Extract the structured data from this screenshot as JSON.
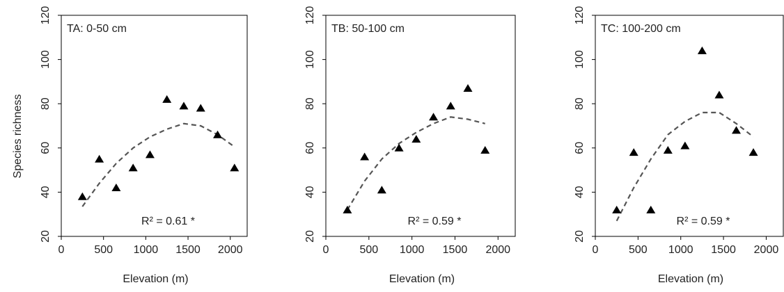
{
  "chart_data": [
    {
      "type": "scatter",
      "title": "TA: 0-50 cm",
      "xlabel": "Elevation (m)",
      "ylabel": "Species richness",
      "xlim": [
        0,
        2200
      ],
      "ylim": [
        20,
        120
      ],
      "xticks": [
        "0",
        "500",
        "1000",
        "1500",
        "2000"
      ],
      "yticks": [
        "20",
        "40",
        "60",
        "80",
        "100",
        "120"
      ],
      "points": [
        {
          "x": 250,
          "y": 38
        },
        {
          "x": 450,
          "y": 55
        },
        {
          "x": 650,
          "y": 42
        },
        {
          "x": 850,
          "y": 51
        },
        {
          "x": 1050,
          "y": 57
        },
        {
          "x": 1250,
          "y": 82
        },
        {
          "x": 1450,
          "y": 79
        },
        {
          "x": 1650,
          "y": 78
        },
        {
          "x": 1850,
          "y": 66
        },
        {
          "x": 2050,
          "y": 51
        }
      ],
      "trend": [
        {
          "x": 250,
          "y": 33.5
        },
        {
          "x": 450,
          "y": 44
        },
        {
          "x": 650,
          "y": 53
        },
        {
          "x": 850,
          "y": 60
        },
        {
          "x": 1050,
          "y": 65
        },
        {
          "x": 1250,
          "y": 68.5
        },
        {
          "x": 1450,
          "y": 71
        },
        {
          "x": 1650,
          "y": 70
        },
        {
          "x": 1850,
          "y": 66
        },
        {
          "x": 2050,
          "y": 60.5
        }
      ],
      "annotation": "R² = 0.61 *"
    },
    {
      "type": "scatter",
      "title": "TB: 50-100 cm",
      "xlabel": "Elevation (m)",
      "ylabel": "",
      "xlim": [
        0,
        2200
      ],
      "ylim": [
        20,
        120
      ],
      "xticks": [
        "0",
        "500",
        "1000",
        "1500",
        "2000"
      ],
      "yticks": [
        "20",
        "40",
        "60",
        "80",
        "100",
        "120"
      ],
      "points": [
        {
          "x": 250,
          "y": 32
        },
        {
          "x": 450,
          "y": 56
        },
        {
          "x": 650,
          "y": 41
        },
        {
          "x": 850,
          "y": 60
        },
        {
          "x": 1050,
          "y": 64
        },
        {
          "x": 1250,
          "y": 74
        },
        {
          "x": 1450,
          "y": 79
        },
        {
          "x": 1650,
          "y": 87
        },
        {
          "x": 1850,
          "y": 59
        }
      ],
      "trend": [
        {
          "x": 250,
          "y": 32
        },
        {
          "x": 450,
          "y": 45
        },
        {
          "x": 650,
          "y": 55
        },
        {
          "x": 850,
          "y": 62
        },
        {
          "x": 1050,
          "y": 67
        },
        {
          "x": 1250,
          "y": 71
        },
        {
          "x": 1450,
          "y": 74
        },
        {
          "x": 1650,
          "y": 73
        },
        {
          "x": 1850,
          "y": 71
        }
      ],
      "annotation": "R² = 0.59 *"
    },
    {
      "type": "scatter",
      "title": "TC: 100-200 cm",
      "xlabel": "Elevation (m)",
      "ylabel": "",
      "xlim": [
        0,
        2200
      ],
      "ylim": [
        20,
        120
      ],
      "xticks": [
        "0",
        "500",
        "1000",
        "1500",
        "2000"
      ],
      "yticks": [
        "20",
        "40",
        "60",
        "80",
        "100",
        "120"
      ],
      "points": [
        {
          "x": 250,
          "y": 32
        },
        {
          "x": 450,
          "y": 58
        },
        {
          "x": 650,
          "y": 32
        },
        {
          "x": 850,
          "y": 59
        },
        {
          "x": 1050,
          "y": 61
        },
        {
          "x": 1250,
          "y": 104
        },
        {
          "x": 1450,
          "y": 84
        },
        {
          "x": 1650,
          "y": 68
        },
        {
          "x": 1850,
          "y": 58
        }
      ],
      "trend": [
        {
          "x": 250,
          "y": 27
        },
        {
          "x": 450,
          "y": 42
        },
        {
          "x": 650,
          "y": 55
        },
        {
          "x": 850,
          "y": 66
        },
        {
          "x": 1050,
          "y": 72
        },
        {
          "x": 1250,
          "y": 76
        },
        {
          "x": 1450,
          "y": 76
        },
        {
          "x": 1650,
          "y": 71
        },
        {
          "x": 1850,
          "y": 65
        }
      ],
      "annotation": "R² = 0.59 *"
    }
  ]
}
